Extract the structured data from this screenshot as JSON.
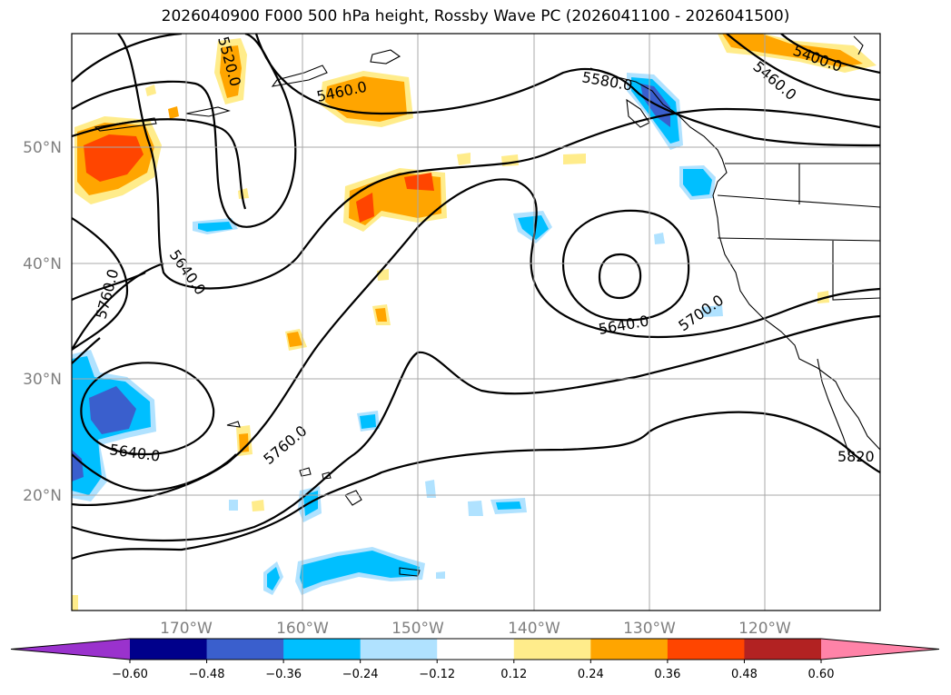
{
  "title": "2026040900 F000 500 hPa height, Rossby Wave PC (2026041100 - 2026041500)",
  "lat_ticks": [
    "50°N",
    "40°N",
    "30°N",
    "20°N"
  ],
  "lon_ticks": [
    "170°W",
    "160°W",
    "150°W",
    "140°W",
    "130°W",
    "120°W"
  ],
  "contour_labels": [
    "5520.0",
    "5460.0",
    "5400.0",
    "5460.0",
    "5580.0",
    "5640.0",
    "5760.0",
    "5640.0",
    "5700.0",
    "5760.0",
    "5640.0",
    "5820"
  ],
  "colorbar": {
    "ticks": [
      "−0.60",
      "−0.48",
      "−0.36",
      "−0.24",
      "−0.12",
      "0.12",
      "0.24",
      "0.36",
      "0.48",
      "0.60"
    ],
    "colors": [
      "#9a32cd",
      "#00008b",
      "#3a5fcd",
      "#00bfff",
      "#b0e2ff",
      "#ffffff",
      "#ffec8b",
      "#ffa500",
      "#ff4500",
      "#b22222",
      "#ff83a8"
    ]
  }
}
